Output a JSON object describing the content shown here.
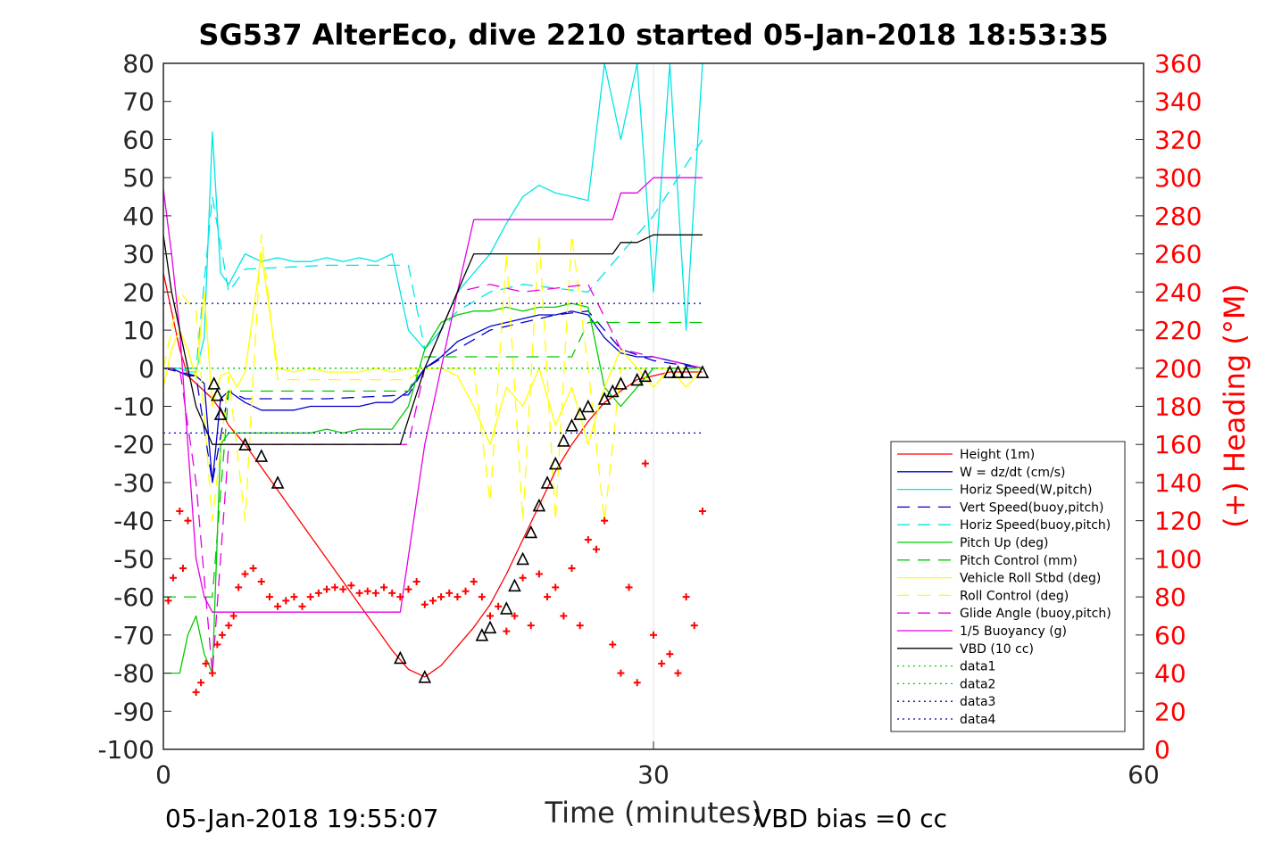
{
  "chart_data": {
    "type": "line",
    "title": "SG537 AlterEco, dive 2210 started 05-Jan-2018 18:53:35",
    "xlabel": "Time (minutes)",
    "ylabel": "",
    "y2label": "(+) Heading (°M)",
    "xlim": [
      0,
      60
    ],
    "ylim": [
      -100,
      80
    ],
    "y2lim": [
      0,
      360
    ],
    "x_ticks": [
      "0",
      "30",
      "60"
    ],
    "y_ticks": [
      "80",
      "70",
      "60",
      "50",
      "40",
      "30",
      "20",
      "10",
      "0",
      "-10",
      "-20",
      "-30",
      "-40",
      "-50",
      "-60",
      "-70",
      "-80",
      "-90",
      "-100"
    ],
    "y2_ticks": [
      "360",
      "340",
      "320",
      "300",
      "280",
      "260",
      "240",
      "220",
      "200",
      "180",
      "160",
      "140",
      "120",
      "100",
      "80",
      "60",
      "40",
      "20",
      "0"
    ],
    "footer_left": "05-Jan-2018 19:55:07",
    "footer_right": "VBD bias =0 cc",
    "legend_position": "right",
    "series": [
      {
        "name": "Height (1m)",
        "color": "#ff0000",
        "style": "solid",
        "x": [
          0,
          0.5,
          1,
          1.5,
          2,
          2.5,
          3,
          3.5,
          4,
          5,
          6,
          7,
          8,
          9,
          10,
          11,
          12,
          13,
          14,
          15,
          16,
          17,
          18,
          19,
          20,
          21,
          22,
          23,
          24,
          25,
          26,
          27,
          28,
          29,
          30,
          31,
          32,
          33
        ],
        "y": [
          25,
          15,
          5,
          -2,
          -4,
          -6,
          -8,
          -11,
          -15,
          -20,
          -26,
          -32,
          -38,
          -44,
          -50,
          -56,
          -62,
          -68,
          -74,
          -79,
          -81,
          -78,
          -73,
          -68,
          -62,
          -54,
          -45,
          -36,
          -27,
          -20,
          -14,
          -9,
          -6,
          -3,
          -2,
          -1,
          -1,
          -1
        ]
      },
      {
        "name": "W = dz/dt (cm/s)",
        "color": "#0000cc",
        "style": "solid",
        "x": [
          0,
          0.5,
          1,
          1.5,
          2,
          2.5,
          3,
          3.5,
          4,
          5,
          6,
          7,
          8,
          9,
          10,
          11,
          12,
          13,
          14,
          15,
          16,
          17,
          18,
          19,
          20,
          21,
          22,
          23,
          24,
          25,
          26,
          27,
          28,
          29,
          30,
          31,
          32,
          33
        ],
        "y": [
          0,
          0,
          -1,
          -2,
          -2,
          -4,
          -30,
          -8,
          -6,
          -9,
          -11,
          -11,
          -11,
          -10,
          -10,
          -10,
          -10,
          -9,
          -9,
          -6,
          0,
          3,
          7,
          9,
          11,
          12,
          13,
          14,
          14,
          15,
          14,
          8,
          4,
          3,
          3,
          2,
          1,
          0
        ]
      },
      {
        "name": "Horiz Speed(W,pitch)",
        "color": "#00e5e5",
        "style": "solid",
        "x": [
          0,
          0.5,
          1,
          1.5,
          2,
          2.5,
          3,
          3.5,
          4,
          5,
          6,
          7,
          8,
          9,
          10,
          11,
          12,
          13,
          14,
          15,
          16,
          17,
          18,
          19,
          20,
          21,
          22,
          23,
          24,
          25,
          26,
          27,
          28,
          29,
          30,
          31,
          32,
          33
        ],
        "y": [
          0,
          0,
          0,
          -1,
          -1,
          8,
          62,
          25,
          22,
          30,
          28,
          29,
          28,
          28,
          29,
          28,
          29,
          28,
          30,
          10,
          5,
          10,
          20,
          25,
          30,
          38,
          45,
          48,
          46,
          45,
          44,
          80,
          60,
          80,
          20,
          80,
          10,
          80
        ]
      },
      {
        "name": "Vert Speed(buoy,pitch)",
        "color": "#0000cc",
        "style": "dashed",
        "x": [
          0,
          1,
          2,
          3,
          4,
          5,
          10,
          15,
          16,
          18,
          20,
          22,
          24,
          26,
          28,
          30,
          33
        ],
        "y": [
          0,
          -1,
          -2,
          -30,
          -6,
          -8,
          -8,
          -7,
          0,
          5,
          10,
          12,
          14,
          15,
          5,
          2,
          0
        ]
      },
      {
        "name": "Horiz Speed(buoy,pitch)",
        "color": "#00e5e5",
        "style": "dashed",
        "x": [
          0,
          1,
          2,
          3,
          4,
          5,
          10,
          15,
          16,
          18,
          20,
          22,
          24,
          26,
          28,
          30,
          33
        ],
        "y": [
          0,
          0,
          0,
          45,
          20,
          26,
          27,
          27,
          5,
          15,
          20,
          22,
          21,
          20,
          30,
          40,
          60
        ]
      },
      {
        "name": "Pitch Up (deg)",
        "color": "#00cc00",
        "style": "solid",
        "x": [
          0,
          0.5,
          1,
          1.5,
          2,
          2.5,
          3,
          3.5,
          4,
          5,
          6,
          7,
          8,
          9,
          10,
          11,
          12,
          13,
          14,
          15,
          16,
          17,
          18,
          19,
          20,
          21,
          22,
          23,
          24,
          25,
          26,
          27,
          28,
          29,
          30,
          31,
          32,
          33
        ],
        "y": [
          -80,
          -80,
          -80,
          -70,
          -65,
          -75,
          -80,
          -20,
          -17,
          -17,
          -17,
          -17,
          -17,
          -17,
          -16,
          -17,
          -16,
          -16,
          -16,
          -10,
          5,
          12,
          14,
          15,
          15,
          16,
          15,
          16,
          16,
          17,
          16,
          -5,
          -10,
          -5,
          0,
          0,
          0,
          0
        ]
      },
      {
        "name": "Pitch Control (mm)",
        "color": "#00cc00",
        "style": "dashed",
        "x": [
          0,
          2,
          3,
          4,
          5,
          10,
          15,
          16,
          20,
          25,
          26,
          28,
          30,
          33
        ],
        "y": [
          -60,
          -60,
          -60,
          -6,
          -6,
          -6,
          -6,
          3,
          3,
          3,
          12,
          12,
          12,
          12
        ]
      },
      {
        "name": "Vehicle Roll Stbd (deg)",
        "color": "#ffff00",
        "style": "solid",
        "x": [
          0,
          0.5,
          1,
          1.5,
          2,
          2.5,
          3,
          3.5,
          4,
          4.5,
          5,
          6,
          7,
          8,
          9,
          10,
          11,
          12,
          13,
          14,
          15,
          16,
          17,
          18,
          19,
          20,
          21,
          22,
          23,
          24,
          25,
          26,
          27,
          28,
          29,
          30,
          31,
          32,
          33
        ],
        "y": [
          -5,
          5,
          10,
          5,
          -3,
          20,
          -10,
          -2,
          -1,
          -5,
          -1,
          30,
          0,
          -1,
          0,
          -1,
          -1,
          -1,
          0,
          -1,
          0,
          0,
          0,
          -2,
          -10,
          -20,
          -5,
          -10,
          0,
          -15,
          -5,
          -20,
          -5,
          5,
          0,
          -5,
          0,
          -5,
          0
        ]
      },
      {
        "name": "Roll Control (deg)",
        "color": "#ffff00",
        "style": "dashed",
        "x": [
          0,
          1,
          2,
          3,
          4,
          5,
          6,
          7,
          15,
          16,
          19,
          20,
          21,
          22,
          23,
          24,
          25,
          26,
          27,
          28,
          30,
          33
        ],
        "y": [
          0,
          20,
          15,
          -40,
          -2,
          -40,
          35,
          -3,
          -3,
          0,
          0,
          -35,
          30,
          -40,
          35,
          -40,
          35,
          0,
          -40,
          0,
          0,
          0
        ]
      },
      {
        "name": "Glide Angle (buoy,pitch)",
        "color": "#e500e5",
        "style": "dashed",
        "x": [
          0,
          1,
          2,
          3,
          4,
          5,
          10,
          15,
          16,
          18,
          20,
          22,
          24,
          26,
          28,
          30,
          33
        ],
        "y": [
          0,
          0,
          -30,
          -80,
          -20,
          -20,
          -20,
          -20,
          0,
          20,
          22,
          20,
          21,
          22,
          5,
          3,
          0
        ]
      },
      {
        "name": "1/5 Buoyancy (g)",
        "color": "#e500e5",
        "style": "solid",
        "x": [
          0,
          0.5,
          1,
          1.5,
          2,
          2.5,
          3,
          3.5,
          5,
          10,
          14.5,
          16,
          18,
          19,
          20,
          25,
          27.5,
          28,
          29,
          30,
          33
        ],
        "y": [
          47,
          30,
          10,
          -20,
          -50,
          -60,
          -64,
          -64,
          -64,
          -64,
          -64,
          -20,
          20,
          39,
          39,
          39,
          39,
          46,
          46,
          50,
          50
        ]
      },
      {
        "name": "VBD (10 cc)",
        "color": "#000000",
        "style": "solid",
        "x": [
          0,
          0.5,
          1,
          1.5,
          2,
          2.5,
          3,
          3.5,
          5,
          10,
          14.5,
          16,
          18,
          19,
          20,
          25,
          27.5,
          28,
          29,
          30,
          33
        ],
        "y": [
          35,
          20,
          10,
          0,
          -10,
          -15,
          -20,
          -20,
          -20,
          -20,
          -20,
          0,
          20,
          30,
          30,
          30,
          30,
          33,
          33,
          35,
          35
        ]
      },
      {
        "name": "data1",
        "color": "#00cc00",
        "style": "dotted",
        "x": [
          0,
          33
        ],
        "y": [
          0,
          0
        ]
      },
      {
        "name": "data2",
        "color": "#00cc00",
        "style": "dotted",
        "x": [
          0,
          33
        ],
        "y": [
          0,
          0
        ]
      },
      {
        "name": "data3",
        "color": "#0000aa",
        "style": "dotted",
        "x": [
          0,
          33
        ],
        "y": [
          -17,
          -17
        ]
      },
      {
        "name": "data4",
        "color": "#0000aa",
        "style": "dotted",
        "x": [
          0,
          33
        ],
        "y": [
          17,
          17
        ]
      }
    ],
    "heading": {
      "color": "#ff0000",
      "marker": "+",
      "x": [
        0.3,
        0.6,
        1,
        1.2,
        1.5,
        2,
        2.3,
        2.6,
        3,
        3.3,
        3.6,
        4,
        4.3,
        4.6,
        5,
        5.5,
        6,
        6.5,
        7,
        7.5,
        8,
        8.5,
        9,
        9.5,
        10,
        10.5,
        11,
        11.5,
        12,
        12.5,
        13,
        13.5,
        14,
        14.5,
        15,
        15.5,
        16,
        16.5,
        17,
        17.5,
        18,
        18.5,
        19,
        19.5,
        20,
        20.5,
        21,
        21.5,
        22,
        22.5,
        23,
        23.5,
        24,
        24.5,
        25,
        25.5,
        26,
        26.5,
        27,
        27.5,
        28,
        28.5,
        29,
        29.5,
        30,
        30.5,
        31,
        31.5,
        32,
        32.5,
        33
      ],
      "y": [
        78,
        90,
        125,
        95,
        120,
        30,
        35,
        45,
        40,
        55,
        60,
        65,
        70,
        85,
        92,
        95,
        88,
        80,
        75,
        78,
        80,
        75,
        80,
        82,
        84,
        85,
        84,
        86,
        82,
        83,
        82,
        85,
        82,
        80,
        84,
        88,
        76,
        78,
        80,
        82,
        80,
        83,
        88,
        80,
        70,
        75,
        62,
        70,
        90,
        65,
        92,
        80,
        85,
        70,
        95,
        65,
        110,
        105,
        120,
        55,
        40,
        85,
        35,
        150,
        60,
        45,
        50,
        40,
        80,
        65,
        125
      ]
    },
    "events": {
      "marker": "triangle",
      "color": "#000000",
      "x": [
        3.1,
        3.3,
        3.5,
        5,
        6,
        7,
        14.5,
        16,
        19.5,
        20,
        21,
        21.5,
        22,
        22.5,
        23,
        23.5,
        24,
        24.5,
        25,
        25.5,
        26,
        27,
        27.5,
        28,
        29,
        29.5,
        31,
        31.5,
        32,
        33
      ],
      "y": [
        -4,
        -7,
        -12,
        -20,
        -23,
        -30,
        -76,
        -81,
        -70,
        -68,
        -63,
        -57,
        -50,
        -43,
        -36,
        -30,
        -25,
        -19,
        -15,
        -12,
        -10,
        -8,
        -6,
        -4,
        -3,
        -2,
        -1,
        -1,
        -1,
        -1
      ]
    }
  }
}
